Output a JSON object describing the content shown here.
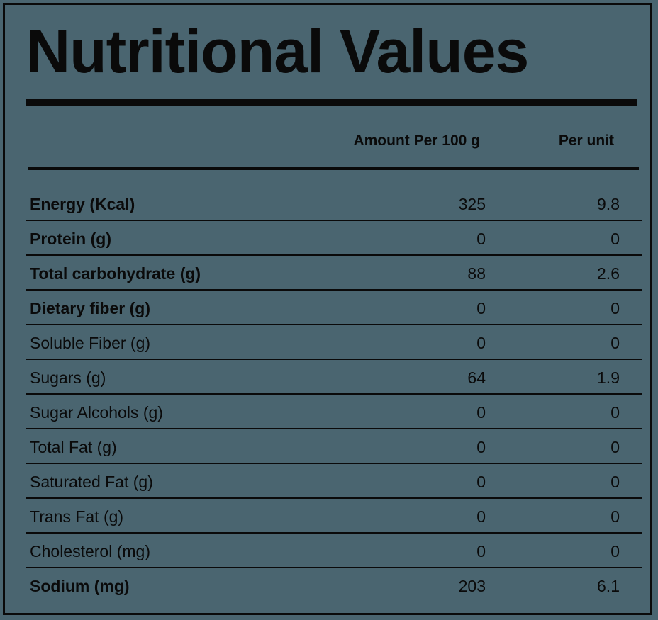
{
  "title": "Nutritional Values",
  "columns": {
    "per_100g": "Amount Per 100 g",
    "per_unit": "Per unit"
  },
  "rows": [
    {
      "label": "Energy (Kcal)",
      "per_100g": "325",
      "per_unit": "9.8",
      "bold": true
    },
    {
      "label": "Protein (g)",
      "per_100g": "0",
      "per_unit": "0",
      "bold": true
    },
    {
      "label": "Total carbohydrate (g)",
      "per_100g": "88",
      "per_unit": "2.6",
      "bold": true
    },
    {
      "label": "Dietary fiber (g)",
      "per_100g": "0",
      "per_unit": "0",
      "bold": true
    },
    {
      "label": "Soluble Fiber (g)",
      "per_100g": "0",
      "per_unit": "0",
      "bold": false
    },
    {
      "label": "Sugars (g)",
      "per_100g": "64",
      "per_unit": "1.9",
      "bold": false
    },
    {
      "label": "Sugar Alcohols (g)",
      "per_100g": "0",
      "per_unit": "0",
      "bold": false
    },
    {
      "label": "Total Fat (g)",
      "per_100g": "0",
      "per_unit": "0",
      "bold": false
    },
    {
      "label": "Saturated Fat (g)",
      "per_100g": "0",
      "per_unit": "0",
      "bold": false
    },
    {
      "label": "Trans Fat (g)",
      "per_100g": "0",
      "per_unit": "0",
      "bold": false
    },
    {
      "label": "Cholesterol (mg)",
      "per_100g": "0",
      "per_unit": "0",
      "bold": false
    },
    {
      "label": "Sodium (mg)",
      "per_100g": "203",
      "per_unit": "6.1",
      "bold": true
    }
  ],
  "colors": {
    "background": "#4a6570",
    "ink": "#0a0a0a"
  }
}
